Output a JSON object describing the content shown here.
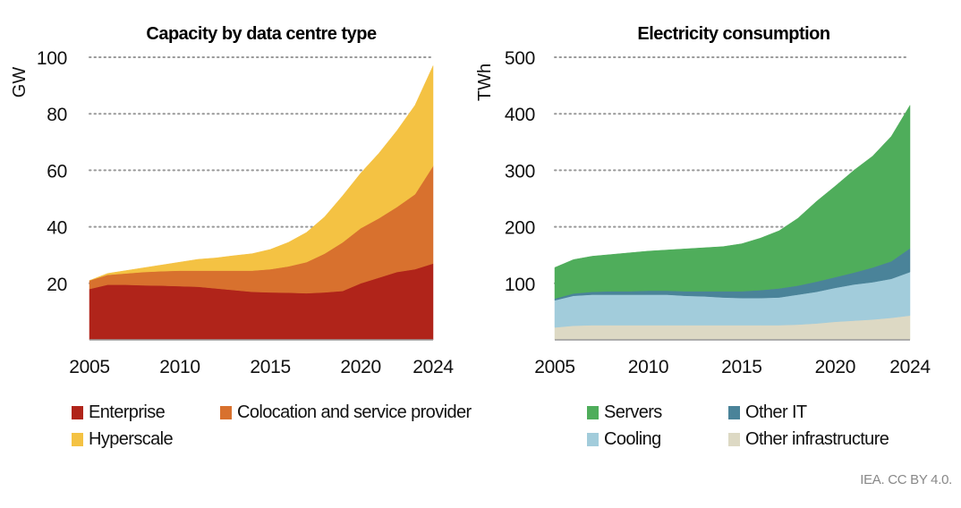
{
  "chart_data": [
    {
      "type": "area",
      "stacked": true,
      "title": "Capacity by data centre type",
      "ylabel": "GW",
      "xlabel": "",
      "ylim": [
        0,
        100
      ],
      "yticks": [
        20,
        40,
        60,
        80,
        100
      ],
      "xticks": [
        2005,
        2010,
        2015,
        2020,
        2024
      ],
      "grid": "horizontal dotted",
      "x": [
        2005,
        2006,
        2007,
        2008,
        2009,
        2010,
        2011,
        2012,
        2013,
        2014,
        2015,
        2016,
        2017,
        2018,
        2019,
        2020,
        2021,
        2022,
        2023,
        2024
      ],
      "series": [
        {
          "name": "Enterprise",
          "color": "#B0241A",
          "values": [
            18,
            19.5,
            19.5,
            19.3,
            19.2,
            19,
            18.8,
            18.2,
            17.6,
            17,
            16.8,
            16.7,
            16.5,
            16.8,
            17.3,
            20,
            22,
            24,
            25,
            27
          ]
        },
        {
          "name": "Colocation and service provider",
          "color": "#D8712E",
          "values": [
            3,
            3.5,
            4,
            4.7,
            5.1,
            5.5,
            5.7,
            6.3,
            6.9,
            7.5,
            8.2,
            9.3,
            11,
            13.7,
            17.2,
            19.5,
            21,
            23,
            26.5,
            34.5
          ]
        },
        {
          "name": "Hyperscale",
          "color": "#F4C243",
          "values": [
            0,
            0.5,
            1,
            1.5,
            2.2,
            3,
            4,
            4.5,
            5.3,
            6,
            7,
            8.5,
            10.5,
            13,
            16.5,
            19.5,
            23,
            27,
            31.5,
            35.5
          ]
        }
      ]
    },
    {
      "type": "area",
      "stacked": true,
      "title": "Electricity consumption",
      "ylabel": "TWh",
      "xlabel": "",
      "ylim": [
        0,
        500
      ],
      "yticks": [
        100,
        200,
        300,
        400,
        500
      ],
      "xticks": [
        2005,
        2010,
        2015,
        2020,
        2024
      ],
      "grid": "horizontal dotted",
      "x": [
        2005,
        2006,
        2007,
        2008,
        2009,
        2010,
        2011,
        2012,
        2013,
        2014,
        2015,
        2016,
        2017,
        2018,
        2019,
        2020,
        2021,
        2022,
        2023,
        2024
      ],
      "series": [
        {
          "name": "Other infrastructure",
          "color": "#DDD9C4",
          "values": [
            22,
            25,
            26,
            26,
            26,
            26,
            26,
            26,
            26,
            26,
            26,
            26,
            26,
            27,
            29,
            32,
            34,
            36,
            39,
            43
          ]
        },
        {
          "name": "Cooling",
          "color": "#A2CCDB",
          "values": [
            48,
            53,
            54,
            54,
            54,
            54,
            54,
            52,
            51,
            49,
            48,
            48,
            49,
            53,
            56,
            60,
            64,
            66,
            69,
            77
          ]
        },
        {
          "name": "Other IT",
          "color": "#4A8399",
          "values": [
            3,
            4,
            5,
            6,
            6,
            7,
            7,
            8,
            9,
            11,
            12,
            14,
            16,
            16,
            18,
            19,
            21,
            26,
            31,
            42
          ]
        },
        {
          "name": "Servers",
          "color": "#4FAD5B",
          "values": [
            55,
            60,
            63,
            65,
            68,
            70,
            72,
            75,
            77,
            79,
            84,
            92,
            102,
            119,
            142,
            161,
            181,
            197,
            221,
            253
          ]
        }
      ]
    }
  ],
  "legend": {
    "left": [
      "Enterprise",
      "Colocation and service provider",
      "Hyperscale"
    ],
    "right": [
      "Servers",
      "Other IT",
      "Cooling",
      "Other infrastructure"
    ]
  },
  "footer": "IEA. CC BY 4.0."
}
